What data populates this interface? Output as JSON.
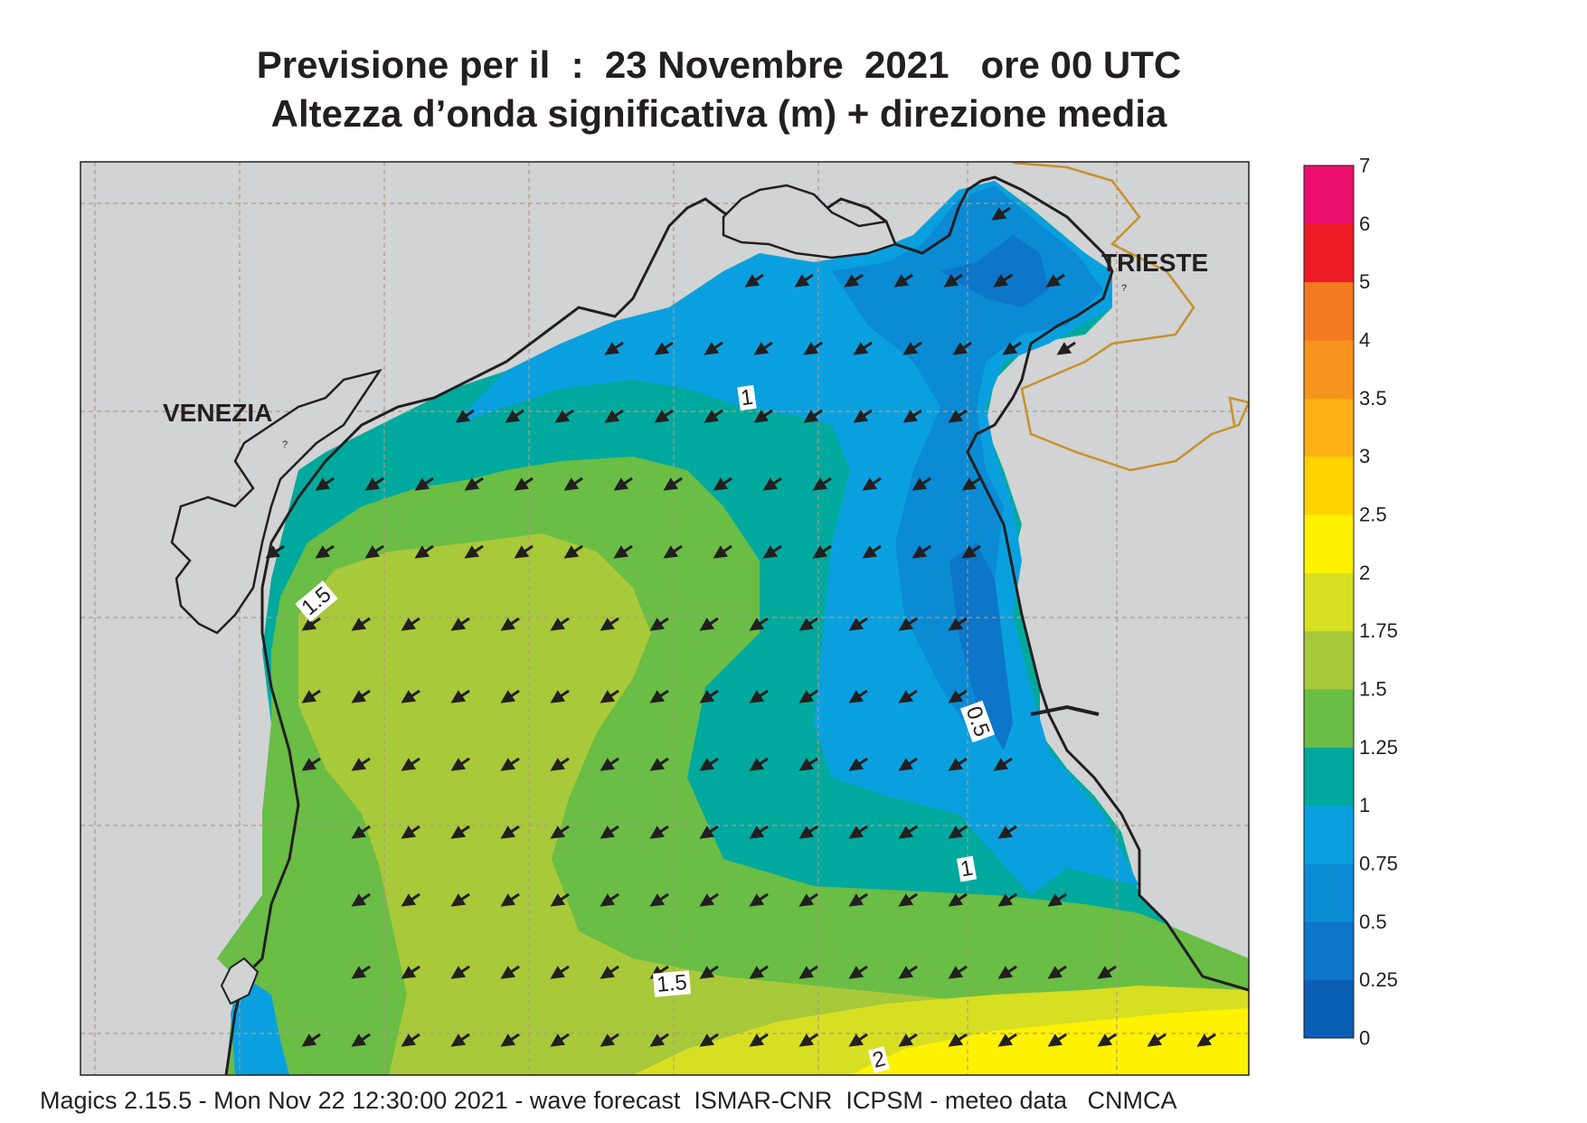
{
  "title": {
    "line1": "Previsione per il  :  23 Novembre  2021   ore 00 UTC",
    "line2": "Altezza d’onda significativa (m) + direzione media"
  },
  "map": {
    "cities": [
      {
        "name": "VENEZIA"
      },
      {
        "name": "TRIESTE"
      }
    ],
    "contour_labels": [
      "1",
      "1.5",
      "0.5",
      "1",
      "1.5",
      "2"
    ],
    "arrow_direction": "south-west",
    "land_color": "#d1d3d4",
    "border_color": "#c8902a"
  },
  "legend": {
    "levels": [
      "0",
      "0.25",
      "0.5",
      "0.75",
      "1",
      "1.25",
      "1.5",
      "1.75",
      "2",
      "2.5",
      "3",
      "3.5",
      "4",
      "5",
      "6",
      "7"
    ],
    "colors": [
      "#0a5fb4",
      "#0d76c9",
      "#0a8bd4",
      "#0aa0e0",
      "#00a99d",
      "#6abd45",
      "#a8c93a",
      "#d7df23",
      "#fff200",
      "#ffd200",
      "#fbb016",
      "#f7941d",
      "#f47920",
      "#ed1c24",
      "#ec0f6e"
    ]
  },
  "footer": "Magics 2.15.5 - Mon Nov 22 12:30:00 2021 - wave forecast  ISMAR-CNR  ICPSM - meteo data   CNMCA"
}
